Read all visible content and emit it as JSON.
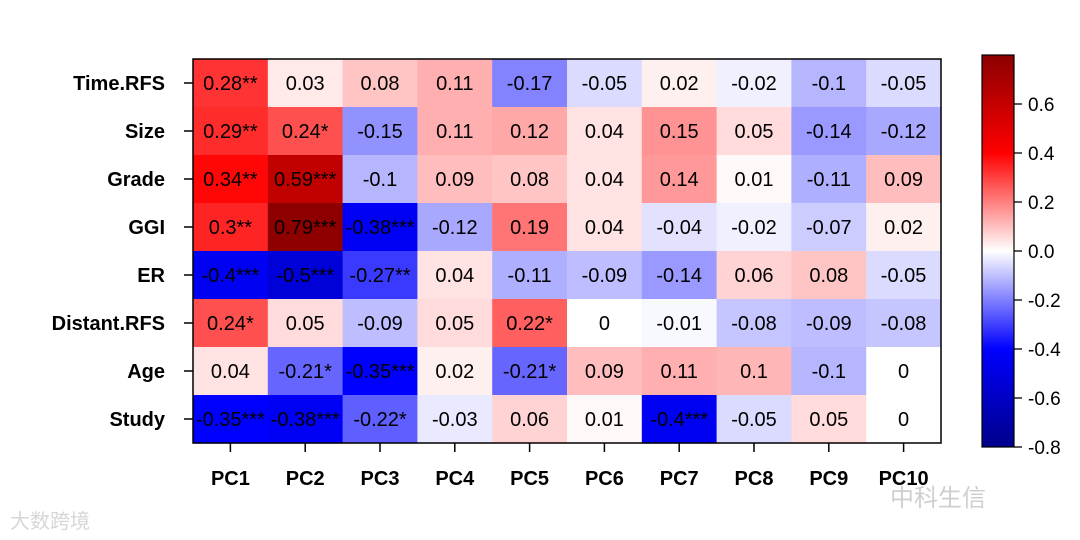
{
  "chart_data": {
    "type": "heatmap",
    "title": "",
    "xlabel": "",
    "ylabel": "",
    "columns": [
      "PC1",
      "PC2",
      "PC3",
      "PC4",
      "PC5",
      "PC6",
      "PC7",
      "PC8",
      "PC9",
      "PC10"
    ],
    "rows": [
      "Time.RFS",
      "Size",
      "Grade",
      "GGI",
      "ER",
      "Distant.RFS",
      "Age",
      "Study"
    ],
    "values": [
      [
        0.28,
        0.03,
        0.08,
        0.11,
        -0.17,
        -0.05,
        0.02,
        -0.02,
        -0.1,
        -0.05
      ],
      [
        0.29,
        0.24,
        -0.15,
        0.11,
        0.12,
        0.04,
        0.15,
        0.05,
        -0.14,
        -0.12
      ],
      [
        0.34,
        0.59,
        -0.1,
        0.09,
        0.08,
        0.04,
        0.14,
        0.01,
        -0.11,
        0.09
      ],
      [
        0.3,
        0.79,
        -0.38,
        -0.12,
        0.19,
        0.04,
        -0.04,
        -0.02,
        -0.07,
        0.02
      ],
      [
        -0.4,
        -0.5,
        -0.27,
        0.04,
        -0.11,
        -0.09,
        -0.14,
        0.06,
        0.08,
        -0.05
      ],
      [
        0.24,
        0.05,
        -0.09,
        0.05,
        0.22,
        0,
        -0.01,
        -0.08,
        -0.09,
        -0.08
      ],
      [
        0.04,
        -0.21,
        -0.35,
        0.02,
        -0.21,
        0.09,
        0.11,
        0.1,
        -0.1,
        0
      ],
      [
        -0.35,
        -0.38,
        -0.22,
        -0.03,
        0.06,
        0.01,
        -0.4,
        -0.05,
        0.05,
        0
      ]
    ],
    "labels": [
      [
        "0.28**",
        "0.03",
        "0.08",
        "0.11",
        "-0.17",
        "-0.05",
        "0.02",
        "-0.02",
        "-0.1",
        "-0.05"
      ],
      [
        "0.29**",
        "0.24*",
        "-0.15",
        "0.11",
        "0.12",
        "0.04",
        "0.15",
        "0.05",
        "-0.14",
        "-0.12"
      ],
      [
        "0.34**",
        "0.59***",
        "-0.1",
        "0.09",
        "0.08",
        "0.04",
        "0.14",
        "0.01",
        "-0.11",
        "0.09"
      ],
      [
        "0.3**",
        "0.79***",
        "-0.38***",
        "-0.12",
        "0.19",
        "0.04",
        "-0.04",
        "-0.02",
        "-0.07",
        "0.02"
      ],
      [
        "-0.4***",
        "-0.5***",
        "-0.27**",
        "0.04",
        "-0.11",
        "-0.09",
        "-0.14",
        "0.06",
        "0.08",
        "-0.05"
      ],
      [
        "0.24*",
        "0.05",
        "-0.09",
        "0.05",
        "0.22*",
        "0",
        "-0.01",
        "-0.08",
        "-0.09",
        "-0.08"
      ],
      [
        "0.04",
        "-0.21*",
        "-0.35***",
        "0.02",
        "-0.21*",
        "0.09",
        "0.11",
        "0.1",
        "-0.1",
        "0"
      ],
      [
        "-0.35***",
        "-0.38***",
        "-0.22*",
        "-0.03",
        "0.06",
        "0.01",
        "-0.4***",
        "-0.05",
        "0.05",
        "0"
      ]
    ],
    "colorbar": {
      "range": [
        -0.8,
        0.8
      ],
      "ticks": [
        -0.8,
        -0.6,
        -0.4,
        -0.2,
        0.0,
        0.2,
        0.4,
        0.6
      ],
      "tick_labels": [
        "-0.8",
        "-0.6",
        "-0.4",
        "-0.2",
        "0.0",
        "0.2",
        "0.4",
        "0.6"
      ],
      "color_stops": [
        "#00008b",
        "#0000ff",
        "#ffffff",
        "#ff0000",
        "#8b0000"
      ]
    },
    "color_scale_saturation": 0.35,
    "grid": false,
    "legend_position": "right"
  },
  "watermarks": {
    "left": "大数跨境",
    "right": "中科生信"
  }
}
